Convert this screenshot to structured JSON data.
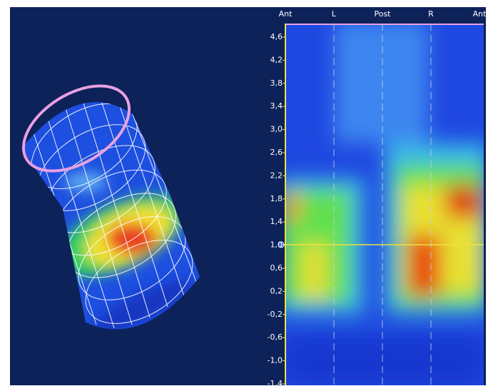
{
  "heatmap": {
    "x_labels": [
      "Ant",
      "L",
      "Post",
      "R",
      "Ant"
    ],
    "y_labels": [
      "4,6",
      "4,2",
      "3,8",
      "3,4",
      "3,0",
      "2,6",
      "2,2",
      "1,8",
      "1,4",
      "1,0",
      "0,6",
      "0,2",
      "-0,2",
      "-0,6",
      "-1,0",
      "-1,4"
    ]
  }
}
